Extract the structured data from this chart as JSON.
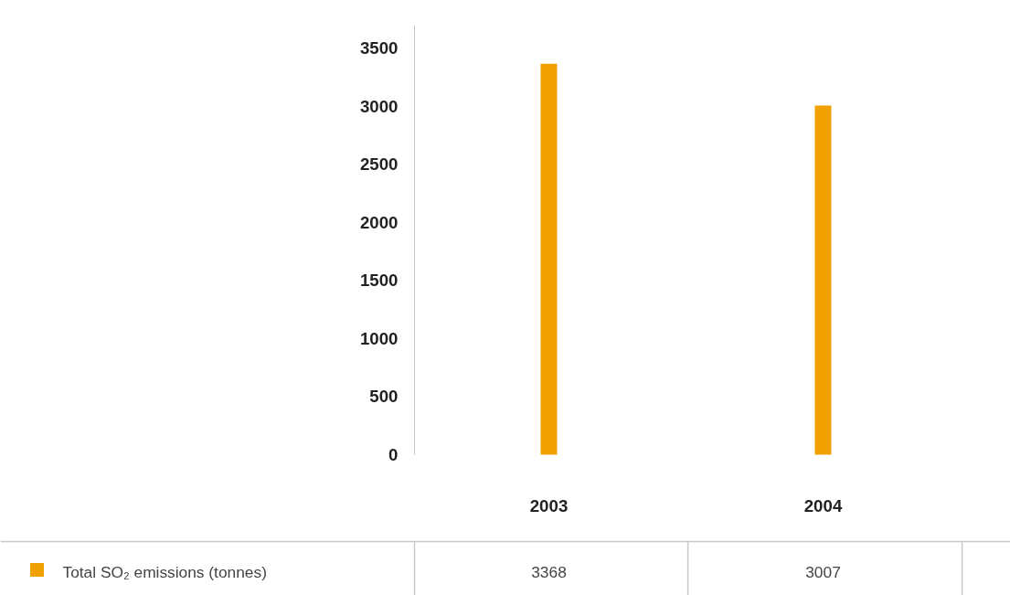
{
  "chart_data": {
    "type": "bar",
    "categories": [
      "2003",
      "2004"
    ],
    "series": [
      {
        "name": "Total SO₂ emissions (tonnes)",
        "color": "#f0a000",
        "values": [
          3368,
          3007
        ]
      }
    ],
    "ylim": [
      0,
      3700
    ],
    "yticks": [
      0,
      500,
      1000,
      1500,
      2000,
      2500,
      3000,
      3500
    ],
    "grid": false,
    "data_labels": true,
    "legend": "bottom left"
  }
}
